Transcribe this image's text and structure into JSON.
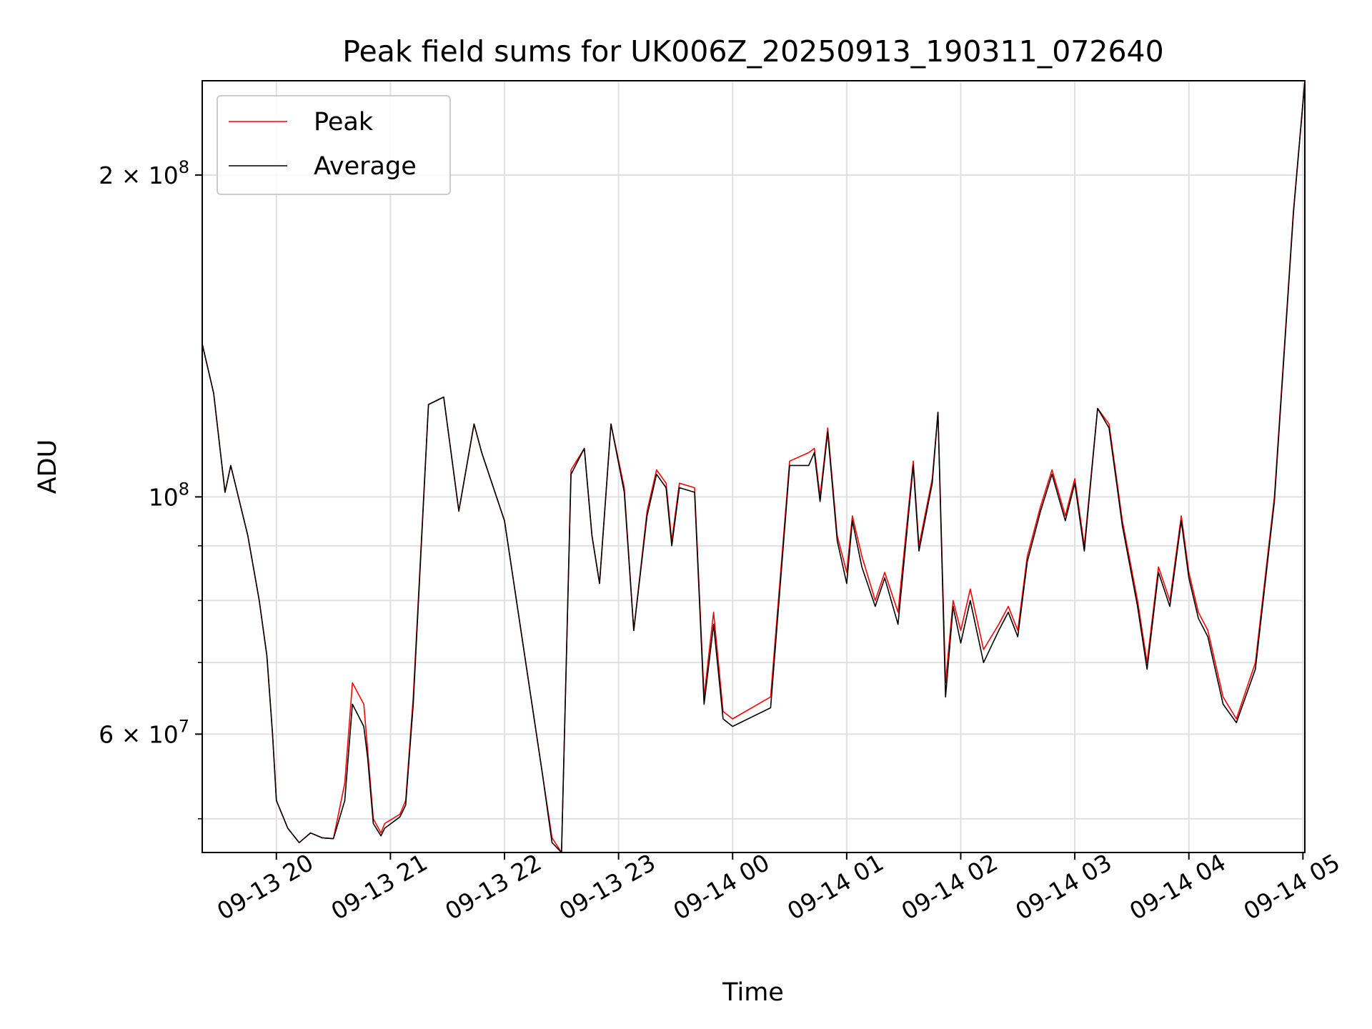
{
  "chart_data": {
    "type": "line",
    "title": "Peak field sums for UK006Z_20250913_190311_072640",
    "xlabel": "Time",
    "ylabel": "ADU",
    "yscale": "log",
    "ylim": [
      46500000,
      245000000
    ],
    "xlim": [
      "09-13 19:21",
      "09-14 05:01"
    ],
    "grid": true,
    "legend_placement": "top-left",
    "x_ticks": [
      "09-13 20",
      "09-13 21",
      "09-13 22",
      "09-13 23",
      "09-14 00",
      "09-14 01",
      "09-14 02",
      "09-14 03",
      "09-14 04",
      "09-14 05"
    ],
    "y_major_ticks": [
      {
        "value": 60000000,
        "mantissa": "6",
        "base": "10",
        "exp": "7"
      },
      {
        "value": 100000000,
        "mantissa": "",
        "base": "10",
        "exp": "8"
      },
      {
        "value": 200000000,
        "mantissa": "2",
        "base": "10",
        "exp": "8"
      }
    ],
    "y_minor_ticks": [
      50000000,
      70000000,
      80000000,
      90000000
    ],
    "x": [
      "09-13 19:21",
      "09-13 19:27",
      "09-13 19:33",
      "09-13 19:36",
      "09-13 19:45",
      "09-13 19:51",
      "09-13 19:55",
      "09-13 19:58",
      "09-13 20:00",
      "09-13 20:06",
      "09-13 20:12",
      "09-13 20:18",
      "09-13 20:24",
      "09-13 20:30",
      "09-13 20:36",
      "09-13 20:40",
      "09-13 20:46",
      "09-13 20:48",
      "09-13 20:51",
      "09-13 20:55",
      "09-13 20:57",
      "09-13 21:05",
      "09-13 21:08",
      "09-13 21:12",
      "09-13 21:20",
      "09-13 21:28",
      "09-13 21:36",
      "09-13 21:44",
      "09-13 21:48",
      "09-13 22:00",
      "09-13 22:20",
      "09-13 22:25",
      "09-13 22:30",
      "09-13 22:35",
      "09-13 22:42",
      "09-13 22:46",
      "09-13 22:50",
      "09-13 22:56",
      "09-13 23:03",
      "09-13 23:08",
      "09-13 23:15",
      "09-13 23:20",
      "09-13 23:25",
      "09-13 23:28",
      "09-13 23:32",
      "09-13 23:40",
      "09-13 23:45",
      "09-13 23:50",
      "09-13 23:55",
      "09-14 00:00",
      "09-14 00:20",
      "09-14 00:30",
      "09-14 00:40",
      "09-14 00:43",
      "09-14 00:46",
      "09-14 00:50",
      "09-14 00:55",
      "09-14 01:00",
      "09-14 01:03",
      "09-14 01:08",
      "09-14 01:15",
      "09-14 01:20",
      "09-14 01:27",
      "09-14 01:35",
      "09-14 01:38",
      "09-14 01:45",
      "09-14 01:48",
      "09-14 01:52",
      "09-14 01:56",
      "09-14 02:00",
      "09-14 02:05",
      "09-14 02:12",
      "09-14 02:20",
      "09-14 02:25",
      "09-14 02:30",
      "09-14 02:35",
      "09-14 02:42",
      "09-14 02:48",
      "09-14 02:55",
      "09-14 03:00",
      "09-14 03:05",
      "09-14 03:12",
      "09-14 03:18",
      "09-14 03:22",
      "09-14 03:25",
      "09-14 03:33",
      "09-14 03:38",
      "09-14 03:44",
      "09-14 03:50",
      "09-14 03:56",
      "09-14 04:00",
      "09-14 04:05",
      "09-14 04:10",
      "09-14 04:18",
      "09-14 04:25",
      "09-14 04:35",
      "09-14 04:45",
      "09-14 04:55",
      "09-14 05:01"
    ],
    "series": [
      {
        "name": "Peak",
        "color": "#ff0000",
        "values": [
          139000000,
          125000000,
          101000000,
          107000000,
          92000000,
          80000000,
          71000000,
          60000000,
          52000000,
          49000000,
          47500000,
          48500000,
          48000000,
          47900000,
          54000000,
          67000000,
          64000000,
          58000000,
          50000000,
          48500000,
          49500000,
          50500000,
          52000000,
          65000000,
          122000000,
          124000000,
          97000000,
          117000000,
          110000000,
          95000000,
          55000000,
          48000000,
          46500000,
          106000000,
          111000000,
          92000000,
          83000000,
          117000000,
          102000000,
          75000000,
          97000000,
          106000000,
          103000000,
          91000000,
          103000000,
          102000000,
          65000000,
          78000000,
          63000000,
          62000000,
          65000000,
          108000000,
          110000000,
          111000000,
          100000000,
          116000000,
          92000000,
          85000000,
          96000000,
          88000000,
          80000000,
          85000000,
          78000000,
          108000000,
          90000000,
          104000000,
          120000000,
          67000000,
          80000000,
          75000000,
          82000000,
          72000000,
          76000000,
          79000000,
          75000000,
          88000000,
          98000000,
          106000000,
          96000000,
          104000000,
          90000000,
          121000000,
          117000000,
          104000000,
          95000000,
          80000000,
          70000000,
          86000000,
          80000000,
          96000000,
          85000000,
          78000000,
          75000000,
          65000000,
          62000000,
          70000000,
          100000000,
          185000000,
          245000000
        ]
      },
      {
        "name": "Average",
        "color": "#000000",
        "values": [
          139000000,
          125000000,
          101000000,
          107000000,
          92000000,
          80000000,
          71000000,
          60000000,
          52000000,
          49000000,
          47500000,
          48500000,
          48000000,
          47900000,
          52000000,
          64000000,
          61000000,
          57000000,
          49500000,
          48200000,
          49000000,
          50200000,
          51500000,
          64000000,
          122000000,
          124000000,
          97000000,
          117000000,
          110000000,
          95000000,
          55000000,
          47500000,
          46500000,
          105000000,
          111000000,
          92000000,
          83000000,
          117000000,
          101000000,
          75000000,
          96000000,
          105000000,
          102000000,
          90000000,
          102000000,
          101000000,
          64000000,
          76000000,
          62000000,
          61000000,
          63500000,
          107000000,
          107000000,
          110000000,
          99000000,
          115000000,
          91000000,
          83000000,
          95000000,
          86000000,
          79000000,
          84000000,
          76000000,
          107000000,
          89000000,
          103000000,
          120000000,
          65000000,
          79000000,
          73000000,
          80000000,
          70000000,
          75000000,
          78000000,
          74000000,
          87000000,
          97000000,
          105000000,
          95000000,
          103000000,
          89000000,
          121000000,
          116000000,
          103000000,
          94000000,
          79000000,
          69000000,
          85000000,
          79000000,
          95000000,
          84000000,
          77000000,
          74000000,
          64000000,
          61500000,
          69000000,
          99000000,
          184000000,
          245000000
        ]
      }
    ]
  }
}
